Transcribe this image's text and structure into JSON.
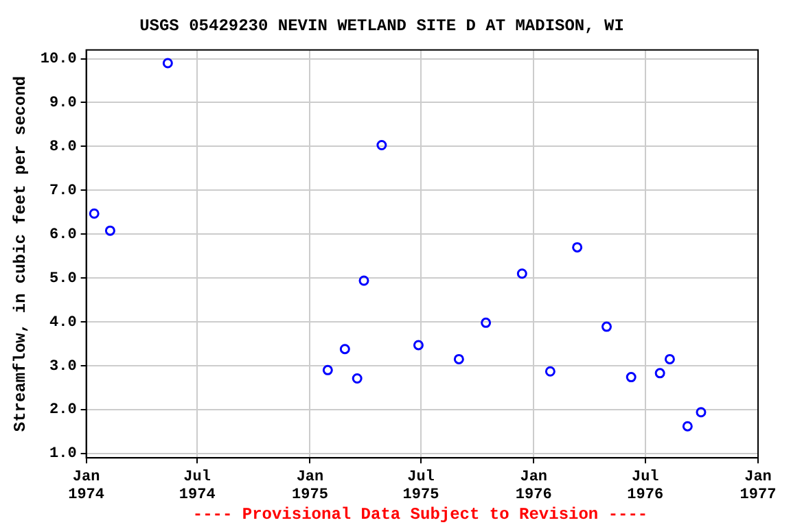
{
  "chart_data": {
    "type": "scatter",
    "title": "USGS 05429230 NEVIN WETLAND SITE D AT MADISON, WI",
    "ylabel": "Streamflow, in cubic feet per second",
    "x": [
      "1974-01-14",
      "1974-02-09",
      "1974-05-14",
      "1975-01-30",
      "1975-02-27",
      "1975-03-19",
      "1975-03-30",
      "1975-04-28",
      "1975-06-27",
      "1975-09-01",
      "1975-10-15",
      "1975-12-13",
      "1976-01-28",
      "1976-03-12",
      "1976-04-29",
      "1976-06-08",
      "1976-07-25",
      "1976-08-10",
      "1976-09-08",
      "1976-09-30"
    ],
    "series": [
      {
        "color": "#0000ff",
        "values": [
          6.47,
          6.08,
          9.9,
          2.9,
          3.38,
          2.71,
          4.94,
          8.03,
          3.47,
          3.15,
          3.98,
          5.1,
          2.87,
          5.7,
          3.89,
          2.74,
          2.83,
          3.15,
          1.62,
          1.94
        ]
      }
    ],
    "xlim": [
      "1974-01",
      "1977-01"
    ],
    "xticks": [
      {
        "value": "1974-01",
        "label": "Jan 1974"
      },
      {
        "value": "1974-07",
        "label": "Jul 1974"
      },
      {
        "value": "1975-01",
        "label": "Jan 1975"
      },
      {
        "value": "1975-07",
        "label": "Jul 1975"
      },
      {
        "value": "1976-01",
        "label": "Jan 1976"
      },
      {
        "value": "1976-07",
        "label": "Jul 1976"
      },
      {
        "value": "1977-01",
        "label": "Jan 1977"
      }
    ],
    "ylim": [
      0.9,
      10.2
    ],
    "yticks": [
      {
        "value": 1,
        "label": "1.0"
      },
      {
        "value": 2,
        "label": "2.0"
      },
      {
        "value": 3,
        "label": "3.0"
      },
      {
        "value": 4,
        "label": "4.0"
      },
      {
        "value": 5,
        "label": "5.0"
      },
      {
        "value": 6,
        "label": "6.0"
      },
      {
        "value": 7,
        "label": "7.0"
      },
      {
        "value": 8,
        "label": "8.0"
      },
      {
        "value": 9,
        "label": "9.0"
      },
      {
        "value": 10,
        "label": "10.0"
      }
    ],
    "grid": true,
    "marker": "circle",
    "legend": false,
    "annotations": [
      "---- Provisional Data Subject to Revision ----"
    ]
  }
}
